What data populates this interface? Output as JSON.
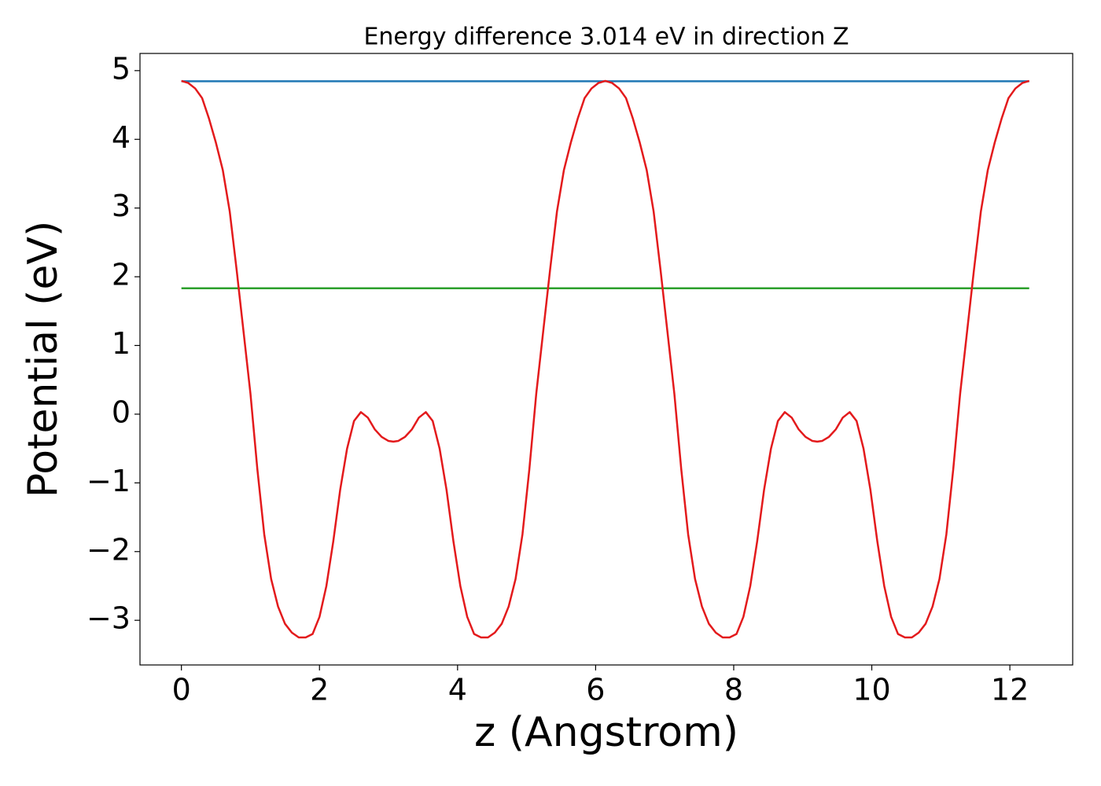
{
  "chart_data": {
    "type": "line",
    "title": "Energy difference 3.014 eV in direction Z",
    "xlabel": "z (Angstrom)",
    "ylabel": "Potential (eV)",
    "xlim": [
      -0.6,
      12.91
    ],
    "ylim": [
      -3.65,
      5.25
    ],
    "xticks": [
      0,
      2,
      4,
      6,
      8,
      10,
      12
    ],
    "yticks": [
      {
        "value": -3,
        "label": "−3"
      },
      {
        "value": -2,
        "label": "−2"
      },
      {
        "value": -1,
        "label": "−1"
      },
      0,
      1,
      2,
      3,
      4,
      5
    ],
    "grid": false,
    "series": [
      {
        "color": "#1f77b4",
        "x": [
          0,
          12.28
        ],
        "values": [
          4.846,
          4.846
        ]
      },
      {
        "color": "#2ca02c",
        "x": [
          0,
          12.28
        ],
        "values": [
          1.832,
          1.832
        ]
      },
      {
        "color": "#e31a1c",
        "x": [
          0,
          0.1,
          0.2,
          0.3,
          0.4,
          0.5,
          0.6,
          0.7,
          0.8,
          0.9,
          1.0,
          1.1,
          1.2,
          1.3,
          1.4,
          1.5,
          1.6,
          1.7,
          1.8,
          1.9,
          2.0,
          2.1,
          2.2,
          2.3,
          2.4,
          2.5,
          2.6,
          2.7,
          2.8,
          2.9,
          3.0,
          3.07,
          3.14,
          3.24,
          3.34,
          3.44,
          3.54,
          3.64,
          3.74,
          3.84,
          3.94,
          4.04,
          4.14,
          4.24,
          4.34,
          4.44,
          4.54,
          4.64,
          4.74,
          4.84,
          4.94,
          5.04,
          5.14,
          5.24,
          5.34,
          5.44,
          5.54,
          5.64,
          5.74,
          5.84,
          5.94,
          6.04,
          6.14,
          6.24,
          6.34,
          6.44,
          6.54,
          6.64,
          6.74,
          6.84,
          6.94,
          7.04,
          7.14,
          7.24,
          7.34,
          7.44,
          7.54,
          7.64,
          7.74,
          7.84,
          7.94,
          8.04,
          8.14,
          8.24,
          8.34,
          8.44,
          8.54,
          8.64,
          8.74,
          8.84,
          8.94,
          9.04,
          9.14,
          9.21,
          9.28,
          9.38,
          9.48,
          9.58,
          9.68,
          9.78,
          9.88,
          9.98,
          10.08,
          10.18,
          10.28,
          10.38,
          10.48,
          10.58,
          10.68,
          10.78,
          10.88,
          10.98,
          11.08,
          11.18,
          11.28,
          11.38,
          11.48,
          11.58,
          11.68,
          11.78,
          11.88,
          11.98,
          12.08,
          12.18,
          12.28
        ],
        "values": [
          4.85,
          4.82,
          4.74,
          4.6,
          4.3,
          3.95,
          3.55,
          2.95,
          2.1,
          1.2,
          0.3,
          -0.8,
          -1.75,
          -2.4,
          -2.8,
          -3.05,
          -3.18,
          -3.25,
          -3.25,
          -3.2,
          -2.95,
          -2.5,
          -1.85,
          -1.1,
          -0.5,
          -0.1,
          0.03,
          -0.05,
          -0.22,
          -0.33,
          -0.39,
          -0.4,
          -0.39,
          -0.33,
          -0.22,
          -0.05,
          0.03,
          -0.1,
          -0.5,
          -1.1,
          -1.85,
          -2.5,
          -2.95,
          -3.2,
          -3.25,
          -3.25,
          -3.18,
          -3.05,
          -2.8,
          -2.4,
          -1.75,
          -0.8,
          0.3,
          1.2,
          2.1,
          2.95,
          3.55,
          3.95,
          4.3,
          4.6,
          4.74,
          4.82,
          4.85,
          4.82,
          4.74,
          4.6,
          4.3,
          3.95,
          3.55,
          2.95,
          2.1,
          1.2,
          0.3,
          -0.8,
          -1.75,
          -2.4,
          -2.8,
          -3.05,
          -3.18,
          -3.25,
          -3.25,
          -3.2,
          -2.95,
          -2.5,
          -1.85,
          -1.1,
          -0.5,
          -0.1,
          0.03,
          -0.05,
          -0.22,
          -0.33,
          -0.39,
          -0.4,
          -0.39,
          -0.33,
          -0.22,
          -0.05,
          0.03,
          -0.1,
          -0.5,
          -1.1,
          -1.85,
          -2.5,
          -2.95,
          -3.2,
          -3.25,
          -3.25,
          -3.18,
          -3.05,
          -2.8,
          -2.4,
          -1.75,
          -0.8,
          0.3,
          1.2,
          2.1,
          2.95,
          3.55,
          3.95,
          4.3,
          4.6,
          4.74,
          4.82,
          4.85
        ]
      }
    ]
  }
}
